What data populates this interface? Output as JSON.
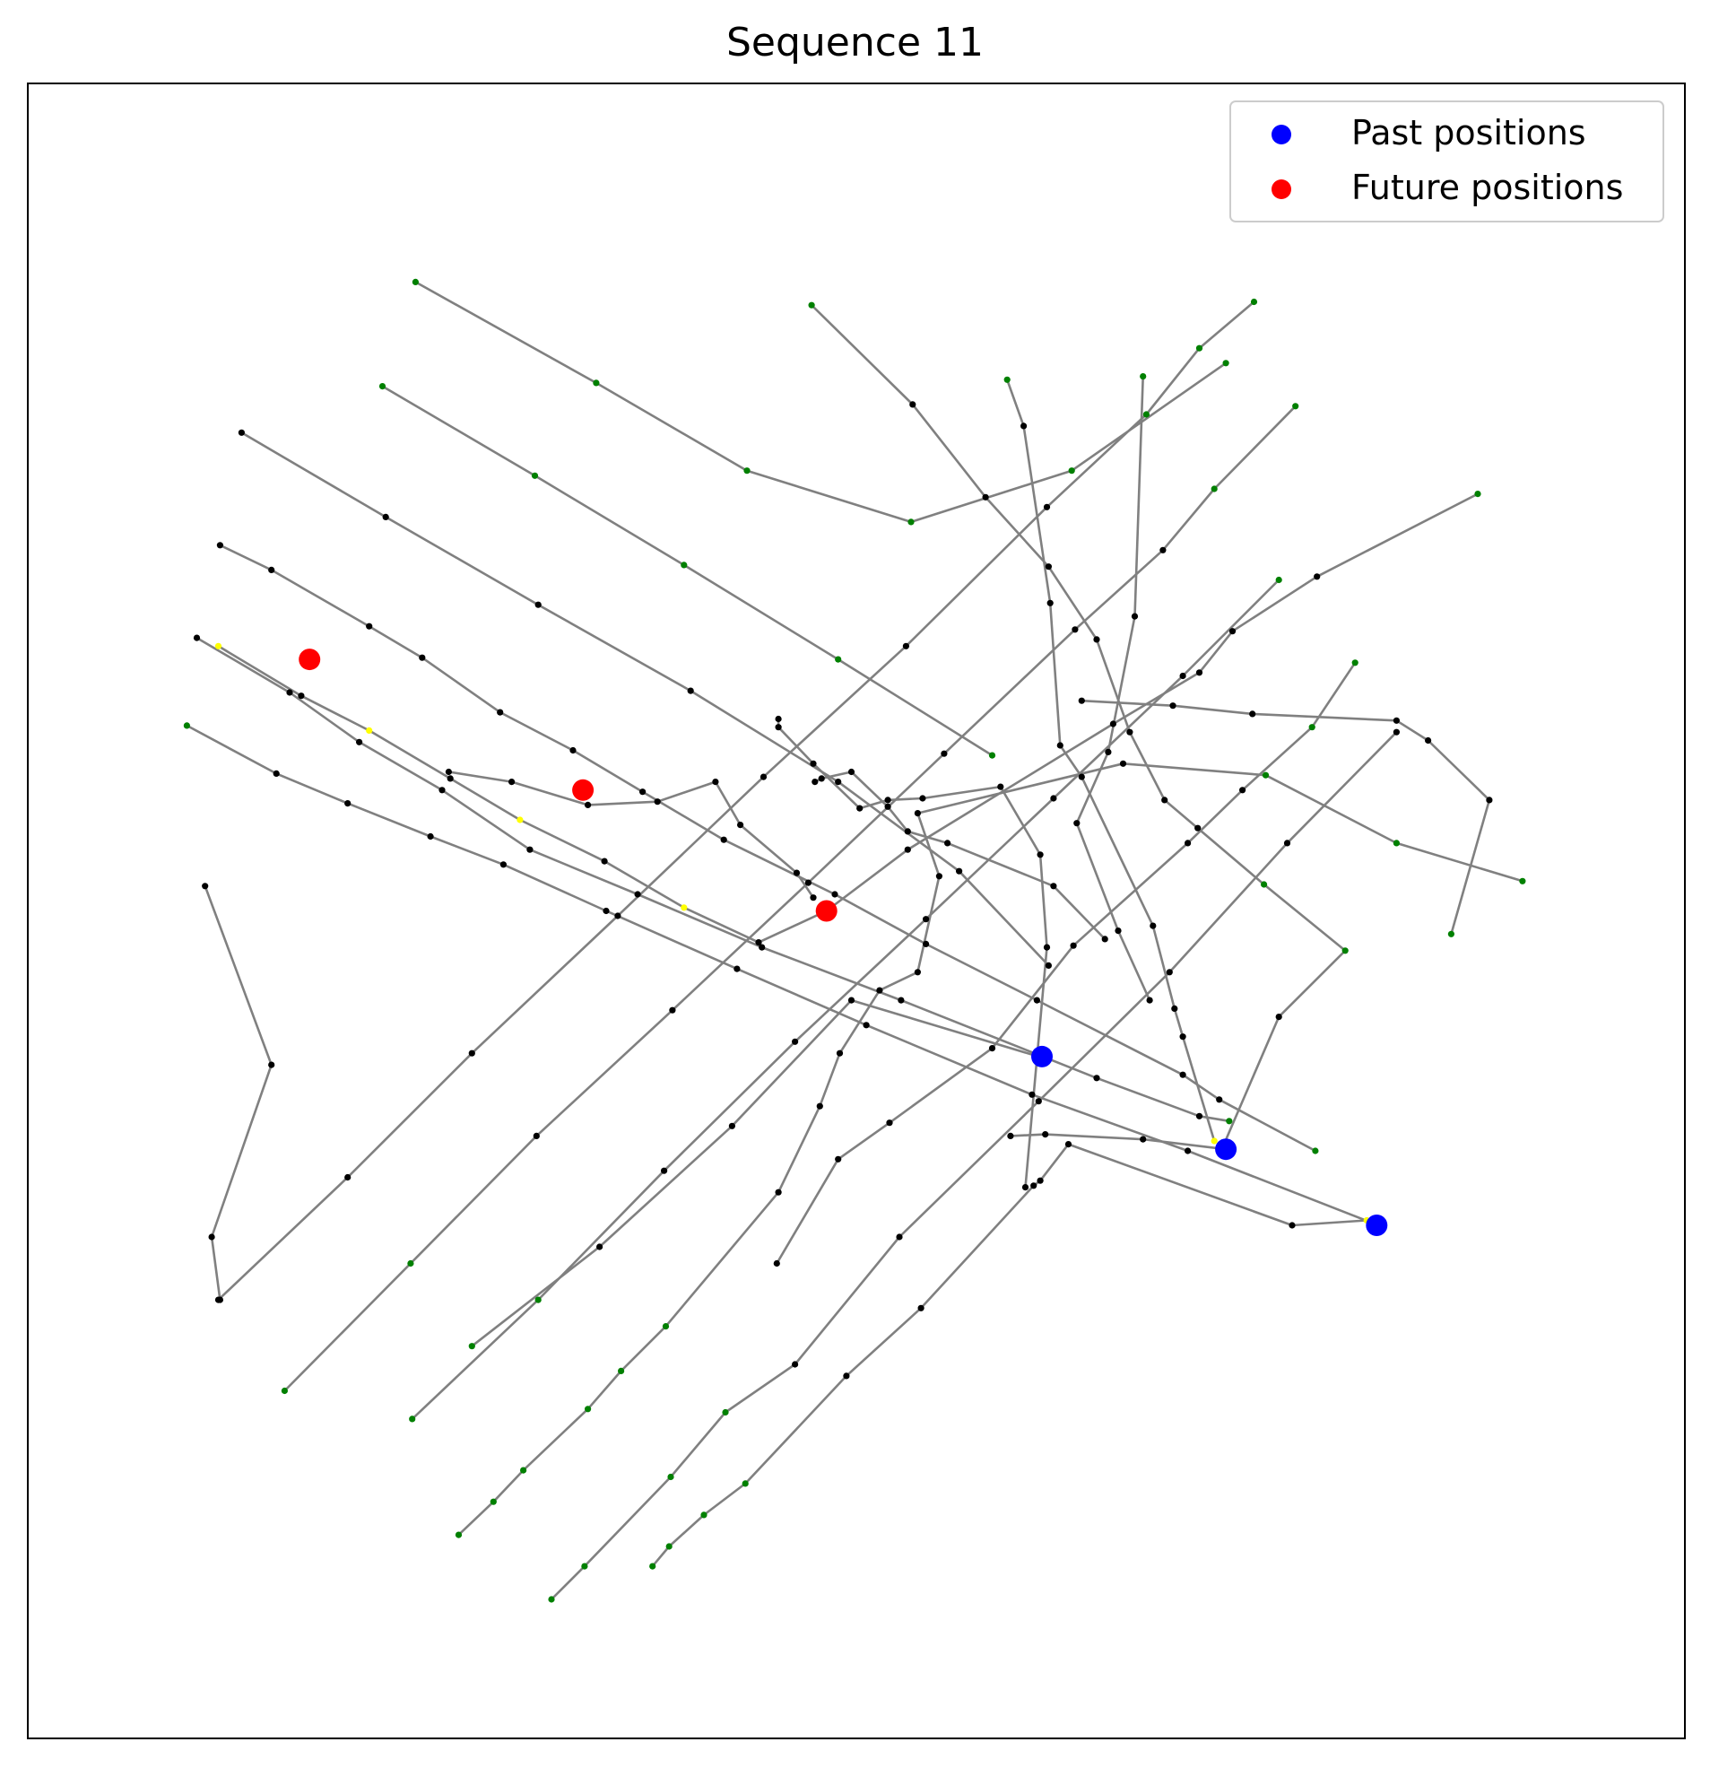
{
  "chart_data": {
    "type": "scatter",
    "title": "Sequence 11",
    "xlabel": "",
    "ylabel": "",
    "xlim": [
      0,
      1000
    ],
    "ylim": [
      0,
      1000
    ],
    "grid": false,
    "axis_ticks": false,
    "legend_placement": "top-right",
    "colors": {
      "past": "#0000ff",
      "future": "#ff0000",
      "line": "#808080",
      "observed": "#008000",
      "predicted": "#ffff00",
      "intermediate": "#000000"
    },
    "legend": [
      {
        "label": "Past positions",
        "color": "#0000ff"
      },
      {
        "label": "Future positions",
        "color": "#ff0000"
      }
    ],
    "past_positions": [
      [
        612,
        412
      ],
      [
        723,
        356
      ],
      [
        814,
        310
      ]
    ],
    "future_positions": [
      [
        170,
        652
      ],
      [
        335,
        573
      ],
      [
        482,
        500
      ]
    ],
    "trajectories": [
      {
        "points": [
          [
            234,
            880
          ],
          [
            343,
            819
          ],
          [
            434,
            766
          ],
          [
            533,
            735
          ],
          [
            630,
            766
          ],
          [
            723,
            831
          ]
        ],
        "colors": [
          "g",
          "g",
          "g",
          "g",
          "g",
          "g"
        ]
      },
      {
        "points": [
          [
            214,
            817
          ],
          [
            306,
            763
          ],
          [
            396,
            709
          ],
          [
            489,
            652
          ],
          [
            582,
            594
          ]
        ],
        "colors": [
          "g",
          "g",
          "g",
          "g",
          "g"
        ]
      },
      {
        "points": [
          [
            129,
            789
          ],
          [
            216,
            738
          ],
          [
            308,
            685
          ],
          [
            400,
            633
          ],
          [
            489,
            578
          ],
          [
            562,
            524
          ],
          [
            616,
            467
          ]
        ],
        "colors": [
          "k",
          "k",
          "k",
          "k",
          "k",
          "k",
          "k"
        ]
      },
      {
        "points": [
          [
            116,
            721
          ],
          [
            147,
            706
          ],
          [
            206,
            672
          ],
          [
            238,
            653
          ],
          [
            285,
            620
          ],
          [
            329,
            597
          ],
          [
            371,
            572
          ],
          [
            420,
            543
          ],
          [
            487,
            510
          ],
          [
            542,
            480
          ],
          [
            609,
            446
          ],
          [
            697,
            401
          ],
          [
            719,
            386
          ],
          [
            777,
            355
          ]
        ],
        "colors": [
          "k",
          "k",
          "k",
          "k",
          "k",
          "k",
          "k",
          "k",
          "k",
          "k",
          "k",
          "k",
          "k",
          "g"
        ]
      },
      {
        "points": [
          [
            102,
            665
          ],
          [
            158,
            632
          ],
          [
            200,
            602
          ],
          [
            250,
            573
          ],
          [
            303,
            537
          ],
          [
            368,
            510
          ],
          [
            443,
            478
          ],
          [
            527,
            446
          ],
          [
            645,
            399
          ],
          [
            707,
            376
          ],
          [
            725,
            373
          ]
        ],
        "colors": [
          "k",
          "k",
          "k",
          "k",
          "k",
          "k",
          "k",
          "k",
          "k",
          "k",
          "g"
        ]
      },
      {
        "points": [
          [
            96,
            612
          ],
          [
            150,
            583
          ],
          [
            193,
            565
          ],
          [
            243,
            545
          ],
          [
            287,
            528
          ],
          [
            349,
            500
          ],
          [
            428,
            465
          ],
          [
            506,
            431
          ],
          [
            606,
            389
          ],
          [
            700,
            355
          ],
          [
            815,
            310
          ]
        ],
        "colors": [
          "g",
          "k",
          "k",
          "k",
          "k",
          "k",
          "k",
          "k",
          "k",
          "k",
          "y"
        ]
      },
      {
        "points": [
          [
            115,
            660
          ],
          [
            165,
            630
          ],
          [
            206,
            609
          ],
          [
            255,
            580
          ],
          [
            297,
            555
          ],
          [
            348,
            530
          ],
          [
            396,
            502
          ],
          [
            441,
            481
          ],
          [
            482,
            500
          ],
          [
            531,
            537
          ],
          [
            655,
            613
          ],
          [
            707,
            644
          ],
          [
            727,
            669
          ],
          [
            778,
            702
          ],
          [
            875,
            752
          ]
        ],
        "colors": [
          "y",
          "k",
          "y",
          "k",
          "y",
          "k",
          "y",
          "k",
          "k",
          "k",
          "k",
          "k",
          "k",
          "k",
          "g"
        ]
      },
      {
        "points": [
          [
            107,
            515
          ],
          [
            147,
            407
          ],
          [
            111,
            303
          ],
          [
            116,
            265
          ]
        ],
        "colors": [
          "k",
          "k",
          "k",
          "k"
        ]
      },
      {
        "points": [
          [
            115,
            265
          ],
          [
            193,
            339
          ],
          [
            268,
            414
          ],
          [
            356,
            497
          ],
          [
            444,
            581
          ],
          [
            530,
            660
          ],
          [
            615,
            744
          ],
          [
            675,
            800
          ],
          [
            707,
            840
          ],
          [
            740,
            868
          ]
        ],
        "colors": [
          "k",
          "k",
          "k",
          "k",
          "k",
          "k",
          "k",
          "g",
          "g",
          "g"
        ]
      },
      {
        "points": [
          [
            155,
            210
          ],
          [
            231,
            287
          ],
          [
            307,
            364
          ],
          [
            389,
            440
          ],
          [
            471,
            517
          ],
          [
            553,
            595
          ],
          [
            632,
            670
          ],
          [
            685,
            718
          ],
          [
            716,
            755
          ],
          [
            765,
            805
          ]
        ],
        "colors": [
          "g",
          "g",
          "k",
          "k",
          "k",
          "k",
          "k",
          "k",
          "g",
          "g"
        ]
      },
      {
        "points": [
          [
            232,
            193
          ],
          [
            308,
            265
          ],
          [
            384,
            343
          ],
          [
            463,
            421
          ],
          [
            542,
            495
          ],
          [
            619,
            568
          ],
          [
            697,
            642
          ],
          [
            755,
            700
          ]
        ],
        "colors": [
          "g",
          "g",
          "k",
          "k",
          "k",
          "k",
          "k",
          "g"
        ]
      },
      {
        "points": [
          [
            260,
            123
          ],
          [
            281,
            143
          ],
          [
            299,
            162
          ],
          [
            338,
            199
          ],
          [
            358,
            222
          ],
          [
            385,
            249
          ],
          [
            453,
            330
          ],
          [
            478,
            382
          ],
          [
            490,
            414
          ],
          [
            514,
            452
          ],
          [
            537,
            463
          ],
          [
            550,
            521
          ],
          [
            537,
            559
          ],
          [
            661,
            589
          ],
          [
            747,
            582
          ],
          [
            826,
            541
          ],
          [
            902,
            518
          ]
        ],
        "colors": [
          "g",
          "g",
          "g",
          "g",
          "g",
          "g",
          "k",
          "k",
          "k",
          "k",
          "k",
          "k",
          "k",
          "k",
          "g",
          "g",
          "g"
        ]
      },
      {
        "points": [
          [
            316,
            84
          ],
          [
            336,
            104
          ],
          [
            388,
            158
          ],
          [
            421,
            197
          ],
          [
            463,
            226
          ],
          [
            526,
            303
          ],
          [
            610,
            385
          ],
          [
            689,
            463
          ],
          [
            760,
            541
          ],
          [
            826,
            608
          ]
        ],
        "colors": [
          "g",
          "g",
          "g",
          "g",
          "k",
          "k",
          "k",
          "k",
          "k",
          "k"
        ]
      },
      {
        "points": [
          [
            377,
            104
          ],
          [
            387,
            116
          ],
          [
            408,
            135
          ],
          [
            433,
            154
          ],
          [
            494,
            219
          ],
          [
            539,
            260
          ],
          [
            607,
            334
          ],
          [
            611,
            337
          ],
          [
            628,
            359
          ],
          [
            763,
            310
          ],
          [
            808,
            313
          ]
        ],
        "colors": [
          "g",
          "g",
          "g",
          "g",
          "k",
          "k",
          "k",
          "k",
          "k",
          "k",
          "y"
        ]
      },
      {
        "points": [
          [
            268,
            237
          ],
          [
            345,
            297
          ],
          [
            425,
            370
          ],
          [
            497,
            446
          ],
          [
            610,
            412
          ]
        ],
        "colors": [
          "g",
          "k",
          "k",
          "k",
          "k"
        ]
      },
      {
        "points": [
          [
            452,
            287
          ],
          [
            489,
            350
          ],
          [
            520,
            372
          ],
          [
            582,
            417
          ],
          [
            631,
            479
          ],
          [
            700,
            541
          ],
          [
            733,
            573
          ],
          [
            775,
            611
          ],
          [
            801,
            650
          ]
        ],
        "colors": [
          "k",
          "k",
          "k",
          "k",
          "k",
          "k",
          "k",
          "g",
          "g"
        ]
      },
      {
        "points": [
          [
            602,
            333
          ],
          [
            615,
            478
          ],
          [
            611,
            534
          ],
          [
            587,
            575
          ],
          [
            540,
            568
          ],
          [
            519,
            567
          ],
          [
            502,
            562
          ],
          [
            474,
            589
          ],
          [
            453,
            611
          ],
          [
            453,
            616
          ]
        ],
        "colors": [
          "k",
          "k",
          "k",
          "k",
          "k",
          "k",
          "k",
          "k",
          "k",
          "k"
        ]
      },
      {
        "points": [
          [
            721,
            357
          ],
          [
            755,
            436
          ],
          [
            795,
            476
          ],
          [
            746,
            516
          ],
          [
            706,
            550
          ],
          [
            686,
            567
          ],
          [
            665,
            608
          ],
          [
            645,
            664
          ],
          [
            616,
            708
          ],
          [
            578,
            750
          ],
          [
            534,
            806
          ],
          [
            473,
            866
          ]
        ],
        "colors": [
          "y",
          "k",
          "g",
          "g",
          "k",
          "k",
          "k",
          "k",
          "k",
          "k",
          "k",
          "g"
        ]
      },
      {
        "points": [
          [
            716,
            361
          ],
          [
            697,
            424
          ],
          [
            692,
            441
          ],
          [
            679,
            491
          ],
          [
            636,
            581
          ],
          [
            623,
            600
          ],
          [
            617,
            686
          ],
          [
            601,
            793
          ],
          [
            591,
            821
          ]
        ],
        "colors": [
          "y",
          "k",
          "k",
          "k",
          "k",
          "k",
          "k",
          "k",
          "g"
        ]
      },
      {
        "points": [
          [
            677,
            446
          ],
          [
            658,
            488
          ],
          [
            633,
            553
          ],
          [
            652,
            596
          ],
          [
            668,
            678
          ],
          [
            673,
            823
          ]
        ],
        "colors": [
          "k",
          "k",
          "k",
          "k",
          "k",
          "g"
        ]
      },
      {
        "points": [
          [
            474,
            508
          ],
          [
            464,
            523
          ],
          [
            430,
            552
          ],
          [
            415,
            578
          ],
          [
            380,
            566
          ],
          [
            338,
            564
          ],
          [
            292,
            578
          ],
          [
            254,
            584
          ]
        ],
        "colors": [
          "k",
          "k",
          "k",
          "k",
          "k",
          "k",
          "k",
          "k"
        ]
      },
      {
        "points": [
          [
            859,
            486
          ],
          [
            882,
            567
          ],
          [
            845,
            603
          ],
          [
            826,
            615
          ],
          [
            739,
            619
          ],
          [
            691,
            624
          ],
          [
            636,
            627
          ]
        ],
        "colors": [
          "g",
          "k",
          "k",
          "k",
          "k",
          "k",
          "k"
        ]
      },
      {
        "points": [
          [
            650,
            483
          ],
          [
            619,
            515
          ],
          [
            555,
            541
          ],
          [
            531,
            548
          ],
          [
            519,
            563
          ],
          [
            497,
            584
          ],
          [
            479,
            580
          ],
          [
            475,
            578
          ]
        ],
        "colors": [
          "k",
          "k",
          "k",
          "k",
          "k",
          "k",
          "k",
          "k"
        ]
      },
      {
        "points": [
          [
            723,
            356
          ],
          [
            673,
            362
          ],
          [
            614,
            365
          ],
          [
            593,
            364
          ]
        ],
        "colors": [
          "g",
          "k",
          "k",
          "k"
        ]
      }
    ]
  }
}
